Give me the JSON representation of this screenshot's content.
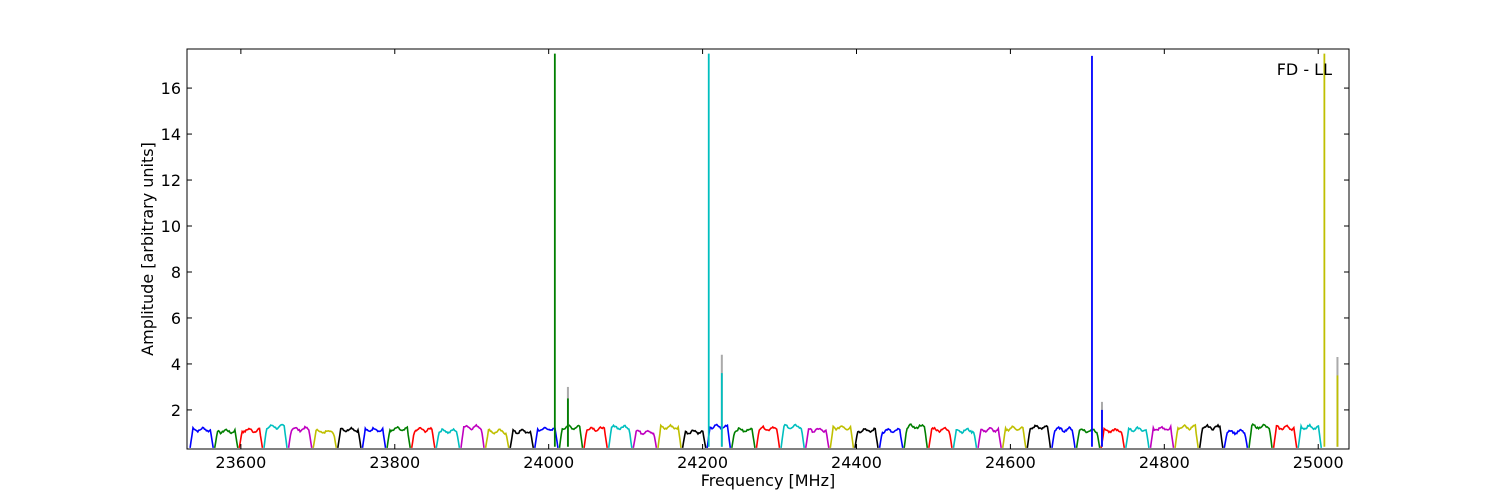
{
  "chart_data": {
    "type": "line",
    "title": "",
    "annotation": "FD - LL",
    "xlabel": "Frequency [MHz]",
    "ylabel": "Amplitude [arbitrary units]",
    "xlim": [
      23530,
      25040
    ],
    "ylim": [
      0.3,
      17.7
    ],
    "xticks": [
      23600,
      23800,
      24000,
      24200,
      24400,
      24600,
      24800,
      25000
    ],
    "yticks": [
      2,
      4,
      6,
      8,
      10,
      12,
      14,
      16
    ],
    "grid": false,
    "legend": "none",
    "colors": [
      "#0000ff",
      "#007f00",
      "#ff0000",
      "#00bfbf",
      "#bf00bf",
      "#bfbf00",
      "#000000"
    ],
    "band_width_mhz": 32,
    "band_start_mhz": 23534,
    "band_count": 46,
    "baseline_level": 1.15,
    "spikes": [
      {
        "x": 24008,
        "y": 17.5,
        "color": "#007f00"
      },
      {
        "x": 24025,
        "y": 2.5,
        "color": "#007f00",
        "grey_y": 3.0
      },
      {
        "x": 24208,
        "y": 17.5,
        "color": "#00bfbf"
      },
      {
        "x": 24225,
        "y": 3.6,
        "color": "#00bfbf",
        "grey_y": 4.4
      },
      {
        "x": 24706,
        "y": 17.4,
        "color": "#0000ff"
      },
      {
        "x": 24719,
        "y": 2.0,
        "color": "#0000ff",
        "grey_y": 2.35
      },
      {
        "x": 25008,
        "y": 17.5,
        "color": "#bfbf00"
      },
      {
        "x": 25025,
        "y": 3.5,
        "color": "#bfbf00",
        "grey_y": 4.3
      }
    ]
  }
}
